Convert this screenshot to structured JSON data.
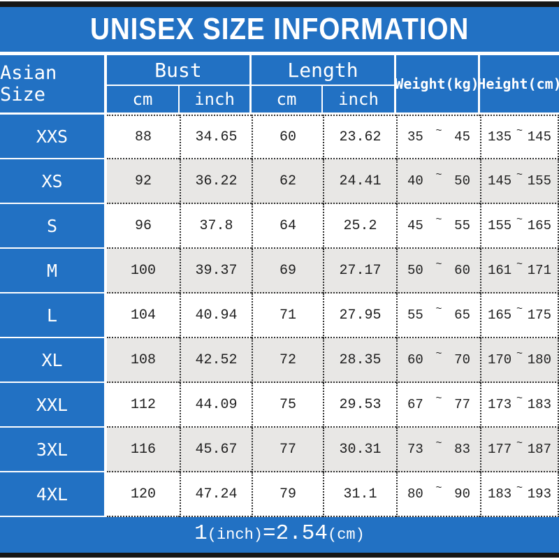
{
  "title": "UNISEX SIZE INFORMATION",
  "colors": {
    "primary_blue": "#2271c3",
    "alt_row_gray": "#e8e7e5",
    "bar_black": "#161616",
    "text_dark": "#1e1e1e",
    "header_text": "#ffffff"
  },
  "header": {
    "asian_size": "Asian Size",
    "bust": "Bust",
    "length": "Length",
    "weight": "Weight(kg)",
    "height": "Height(cm)",
    "cm": "cm",
    "inch": "inch"
  },
  "table": {
    "tilde": "~",
    "rows": [
      {
        "size": "XXS",
        "bust_cm": "88",
        "bust_inch": "34.65",
        "length_cm": "60",
        "length_inch": "23.62",
        "weight_min": "35",
        "weight_max": "45",
        "height_min": "135",
        "height_max": "145"
      },
      {
        "size": "XS",
        "bust_cm": "92",
        "bust_inch": "36.22",
        "length_cm": "62",
        "length_inch": "24.41",
        "weight_min": "40",
        "weight_max": "50",
        "height_min": "145",
        "height_max": "155"
      },
      {
        "size": "S",
        "bust_cm": "96",
        "bust_inch": "37.8",
        "length_cm": "64",
        "length_inch": "25.2",
        "weight_min": "45",
        "weight_max": "55",
        "height_min": "155",
        "height_max": "165"
      },
      {
        "size": "M",
        "bust_cm": "100",
        "bust_inch": "39.37",
        "length_cm": "69",
        "length_inch": "27.17",
        "weight_min": "50",
        "weight_max": "60",
        "height_min": "161",
        "height_max": "171"
      },
      {
        "size": "L",
        "bust_cm": "104",
        "bust_inch": "40.94",
        "length_cm": "71",
        "length_inch": "27.95",
        "weight_min": "55",
        "weight_max": "65",
        "height_min": "165",
        "height_max": "175"
      },
      {
        "size": "XL",
        "bust_cm": "108",
        "bust_inch": "42.52",
        "length_cm": "72",
        "length_inch": "28.35",
        "weight_min": "60",
        "weight_max": "70",
        "height_min": "170",
        "height_max": "180"
      },
      {
        "size": "XXL",
        "bust_cm": "112",
        "bust_inch": "44.09",
        "length_cm": "75",
        "length_inch": "29.53",
        "weight_min": "67",
        "weight_max": "77",
        "height_min": "173",
        "height_max": "183"
      },
      {
        "size": "3XL",
        "bust_cm": "116",
        "bust_inch": "45.67",
        "length_cm": "77",
        "length_inch": "30.31",
        "weight_min": "73",
        "weight_max": "83",
        "height_min": "177",
        "height_max": "187"
      },
      {
        "size": "4XL",
        "bust_cm": "120",
        "bust_inch": "47.24",
        "length_cm": "79",
        "length_inch": "31.1",
        "weight_min": "80",
        "weight_max": "90",
        "height_min": "183",
        "height_max": "193"
      }
    ]
  },
  "footer": {
    "big1": "1",
    "small1": "(inch)",
    "eq": "=",
    "big2": "2.54",
    "small2": "(cm)"
  },
  "chart_data": {
    "type": "table",
    "title": "UNISEX SIZE INFORMATION",
    "columns": [
      "Asian Size",
      "Bust cm",
      "Bust inch",
      "Length cm",
      "Length inch",
      "Weight(kg)",
      "Height(cm)"
    ],
    "rows": [
      [
        "XXS",
        88,
        34.65,
        60,
        23.62,
        "35~45",
        "135~145"
      ],
      [
        "XS",
        92,
        36.22,
        62,
        24.41,
        "40~50",
        "145~155"
      ],
      [
        "S",
        96,
        37.8,
        64,
        25.2,
        "45~55",
        "155~165"
      ],
      [
        "M",
        100,
        39.37,
        69,
        27.17,
        "50~60",
        "161~171"
      ],
      [
        "L",
        104,
        40.94,
        71,
        27.95,
        "55~65",
        "165~175"
      ],
      [
        "XL",
        108,
        42.52,
        72,
        28.35,
        "60~70",
        "170~180"
      ],
      [
        "XXL",
        112,
        44.09,
        75,
        29.53,
        "67~77",
        "173~183"
      ],
      [
        "3XL",
        116,
        45.67,
        77,
        30.31,
        "73~83",
        "177~187"
      ],
      [
        "4XL",
        120,
        47.24,
        79,
        31.1,
        "80~90",
        "183~193"
      ]
    ],
    "note": "1(inch)=2.54(cm)"
  }
}
